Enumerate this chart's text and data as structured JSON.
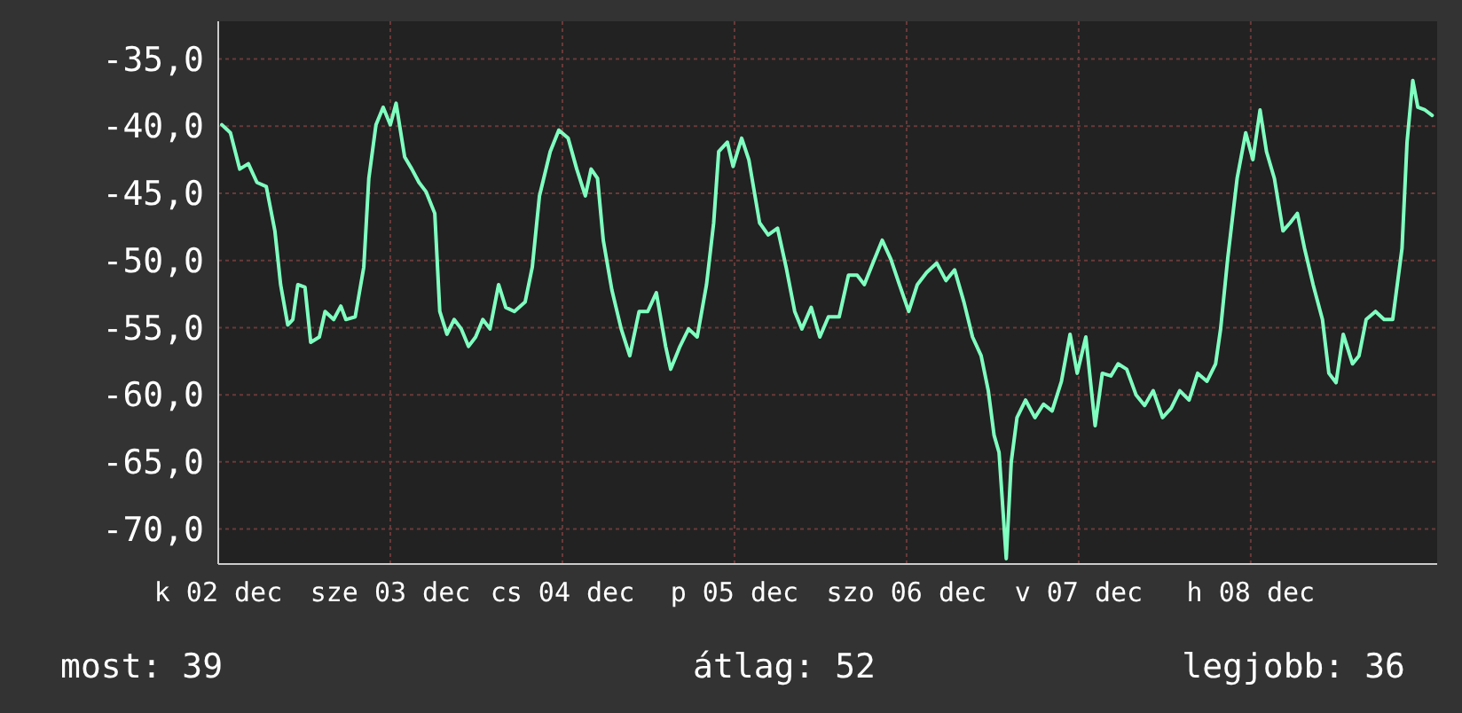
{
  "chart_data": {
    "type": "line",
    "xlim": [
      "--12-02T00:00",
      "--12-09T02:00"
    ],
    "ylim": [
      -72.6,
      -32.2
    ],
    "xticks": [
      {
        "value": "--12-02",
        "label": "k 02 dec"
      },
      {
        "value": "--12-03",
        "label": "sze 03 dec"
      },
      {
        "value": "--12-04",
        "label": "cs 04 dec"
      },
      {
        "value": "--12-05",
        "label": "p 05 dec"
      },
      {
        "value": "--12-06",
        "label": "szo 06 dec"
      },
      {
        "value": "--12-07",
        "label": "v 07 dec"
      },
      {
        "value": "--12-08",
        "label": "h 08 dec"
      }
    ],
    "yticks": [
      {
        "value": -35,
        "label": "-35,0"
      },
      {
        "value": -40,
        "label": "-40,0"
      },
      {
        "value": -45,
        "label": "-45,0"
      },
      {
        "value": -50,
        "label": "-50,0"
      },
      {
        "value": -55,
        "label": "-55,0"
      },
      {
        "value": -60,
        "label": "-60,0"
      },
      {
        "value": -65,
        "label": "-65,0"
      },
      {
        "value": -70,
        "label": "-70,0"
      }
    ],
    "grid": true,
    "line_style": "solid",
    "marker": "none",
    "annotations": [
      "most: 39",
      "átlag: 52",
      "legjobb: 36"
    ],
    "series": [
      {
        "color": "#80ffc0",
        "x": [
          "--12-02T00:30",
          "--12-02T01:42",
          "--12-02T03:00",
          "--12-02T04:12",
          "--12-02T05:24",
          "--12-02T06:42",
          "--12-02T07:54",
          "--12-02T08:42",
          "--12-02T09:42",
          "--12-02T10:24",
          "--12-02T11:06",
          "--12-02T12:06",
          "--12-02T12:54",
          "--12-02T14:06",
          "--12-02T14:54",
          "--12-02T16:06",
          "--12-02T17:06",
          "--12-02T17:48",
          "--12-02T19:06",
          "--12-02T20:18",
          "--12-02T21:00",
          "--12-02T22:00",
          "--12-02T23:00",
          "--12-03T00:00",
          "--12-03T00:48",
          "--12-03T02:00",
          "--12-03T03:00",
          "--12-03T04:00",
          "--12-03T05:00",
          "--12-03T06:12",
          "--12-03T06:54",
          "--12-03T07:54",
          "--12-03T08:54",
          "--12-03T09:54",
          "--12-03T10:54",
          "--12-03T11:54",
          "--12-03T12:54",
          "--12-03T13:54",
          "--12-03T15:06",
          "--12-03T16:06",
          "--12-03T17:18",
          "--12-03T18:48",
          "--12-03T19:48",
          "--12-03T20:48",
          "--12-03T22:18",
          "--12-03T23:30",
          "--12-04T00:48",
          "--12-04T02:00",
          "--12-04T03:12",
          "--12-04T04:00",
          "--12-04T04:54",
          "--12-04T05:42",
          "--12-04T06:54",
          "--12-04T08:12",
          "--12-04T09:24",
          "--12-04T10:42",
          "--12-04T11:54",
          "--12-04T13:06",
          "--12-04T14:24",
          "--12-04T15:06",
          "--12-04T16:24",
          "--12-04T17:36",
          "--12-04T18:48",
          "--12-04T20:06",
          "--12-04T21:06",
          "--12-04T21:48",
          "--12-04T23:00",
          "--12-04T23:48",
          "--12-05T01:00",
          "--12-05T02:00",
          "--12-05T03:30",
          "--12-05T04:42",
          "--12-05T06:00",
          "--12-05T07:12",
          "--12-05T08:24",
          "--12-05T09:24",
          "--12-05T10:42",
          "--12-05T11:54",
          "--12-05T13:06",
          "--12-05T14:36",
          "--12-05T15:54",
          "--12-05T17:06",
          "--12-05T18:06",
          "--12-05T19:18",
          "--12-05T20:36",
          "--12-05T21:48",
          "--12-05T23:00",
          "--12-06T00:18",
          "--12-06T01:30",
          "--12-06T02:48",
          "--12-06T04:12",
          "--12-06T05:30",
          "--12-06T06:42",
          "--12-06T08:00",
          "--12-06T09:12",
          "--12-06T10:24",
          "--12-06T11:24",
          "--12-06T12:12",
          "--12-06T12:54",
          "--12-06T13:54",
          "--12-06T14:36",
          "--12-06T15:24",
          "--12-06T16:36",
          "--12-06T17:54",
          "--12-06T19:06",
          "--12-06T20:18",
          "--12-06T21:36",
          "--12-06T22:48",
          "--12-06T23:48",
          "--12-07T01:00",
          "--12-07T02:18",
          "--12-07T03:18",
          "--12-07T04:30",
          "--12-07T05:30",
          "--12-07T06:42",
          "--12-07T08:00",
          "--12-07T09:12",
          "--12-07T10:24",
          "--12-07T11:42",
          "--12-07T12:54",
          "--12-07T14:06",
          "--12-07T15:24",
          "--12-07T16:36",
          "--12-07T17:54",
          "--12-07T19:06",
          "--12-07T19:48",
          "--12-07T20:48",
          "--12-07T22:06",
          "--12-07T23:18",
          "--12-08T00:18",
          "--12-08T01:18",
          "--12-08T02:12",
          "--12-08T03:18",
          "--12-08T04:30",
          "--12-08T05:30",
          "--12-08T06:30",
          "--12-08T07:30",
          "--12-08T08:42",
          "--12-08T10:00",
          "--12-08T10:54",
          "--12-08T11:54",
          "--12-08T12:54",
          "--12-08T14:12",
          "--12-08T15:06",
          "--12-08T16:06",
          "--12-08T17:24",
          "--12-08T18:36",
          "--12-08T19:48",
          "--12-08T21:06",
          "--12-08T21:48",
          "--12-08T22:36",
          "--12-08T23:18",
          "--12-09T00:18",
          "--12-09T01:18"
        ],
        "values": [
          -39.9,
          -40.5,
          -43.2,
          -42.8,
          -44.2,
          -44.5,
          -47.8,
          -51.8,
          -54.8,
          -54.4,
          -51.8,
          -52,
          -56.1,
          -55.7,
          -53.8,
          -54.4,
          -53.4,
          -54.4,
          -54.2,
          -50.5,
          -43.9,
          -39.9,
          -38.6,
          -39.9,
          -38.3,
          -42.3,
          -43.2,
          -44.2,
          -44.9,
          -46.5,
          -53.8,
          -55.5,
          -54.4,
          -55.1,
          -56.4,
          -55.7,
          -54.4,
          -55.1,
          -51.8,
          -53.5,
          -53.8,
          -53.1,
          -50.5,
          -45.2,
          -41.9,
          -40.3,
          -40.9,
          -43.2,
          -45.2,
          -43.2,
          -43.9,
          -48.5,
          -52.2,
          -55.1,
          -57.1,
          -53.8,
          -53.8,
          -52.4,
          -56.4,
          -58.1,
          -56.4,
          -55.1,
          -55.7,
          -51.8,
          -47.2,
          -41.9,
          -41.2,
          -43,
          -40.9,
          -42.5,
          -47.2,
          -48.1,
          -47.6,
          -50.5,
          -53.8,
          -55.1,
          -53.5,
          -55.7,
          -54.2,
          -54.2,
          -51.1,
          -51.1,
          -51.8,
          -50.2,
          -48.5,
          -49.9,
          -51.8,
          -53.8,
          -51.8,
          -50.9,
          -50.2,
          -51.5,
          -50.7,
          -53.1,
          -55.7,
          -57.1,
          -59.7,
          -63,
          -64.3,
          -72.2,
          -65,
          -61.7,
          -60.4,
          -61.7,
          -60.7,
          -61.2,
          -59,
          -55.5,
          -58.4,
          -55.7,
          -62.3,
          -58.4,
          -58.6,
          -57.7,
          -58.1,
          -60,
          -60.8,
          -59.7,
          -61.7,
          -61,
          -59.7,
          -60.4,
          -58.4,
          -59,
          -57.7,
          -55.1,
          -49.8,
          -43.9,
          -40.5,
          -42.5,
          -38.8,
          -41.9,
          -43.9,
          -47.8,
          -47.2,
          -46.5,
          -49.1,
          -51.8,
          -54.4,
          -58.4,
          -59.1,
          -55.5,
          -57.7,
          -57.1,
          -54.4,
          -53.8,
          -54.4,
          -54.4,
          -49.1,
          -41.2,
          -36.6,
          -38.6,
          -38.8,
          -39.2
        ]
      }
    ]
  }
}
